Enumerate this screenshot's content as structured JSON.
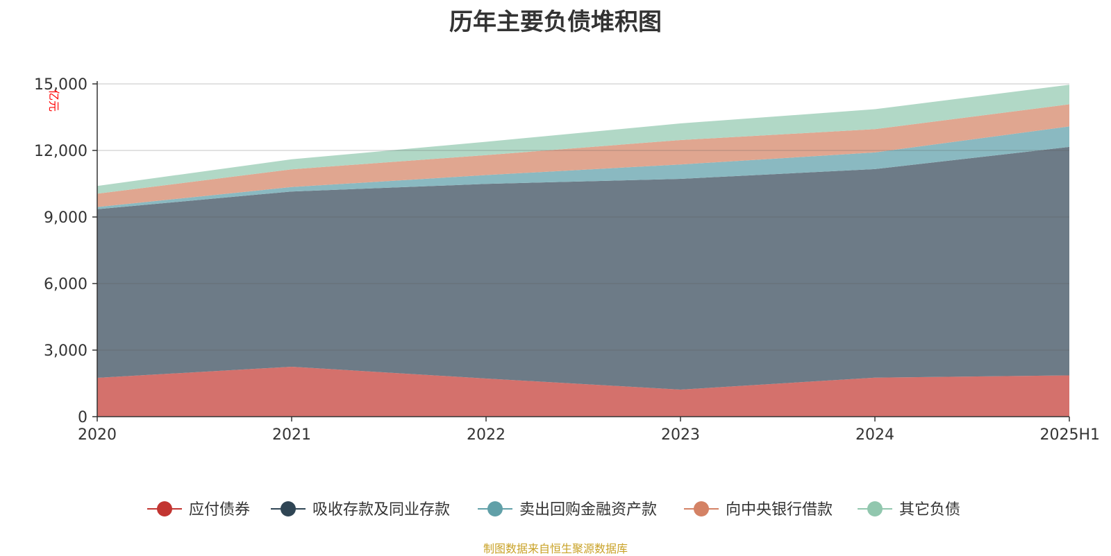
{
  "chart_data": {
    "type": "area",
    "stacked": true,
    "title": "历年主要负债堆积图",
    "unit_label": "亿元",
    "categories": [
      "2020",
      "2021",
      "2022",
      "2023",
      "2024",
      "2025H1"
    ],
    "ylim": [
      0,
      15000
    ],
    "yticks": [
      "0",
      "3,000",
      "6,000",
      "9,000",
      "12,000",
      "15,000"
    ],
    "ytick_values": [
      0,
      3000,
      6000,
      9000,
      12000,
      15000
    ],
    "grid": true,
    "legend_position": "bottom",
    "series": [
      {
        "name": "应付债券",
        "color": "#c23531",
        "fill": "#d4716c",
        "values": [
          1750,
          2250,
          1720,
          1220,
          1760,
          1860
        ]
      },
      {
        "name": "吸收存款及同业存款",
        "color": "#2f4554",
        "fill": "#6d7b87",
        "values": [
          7600,
          7900,
          8770,
          9500,
          9400,
          10300
        ]
      },
      {
        "name": "卖出回购金融资产款",
        "color": "#61a0a8",
        "fill": "#8ab9c1",
        "values": [
          100,
          200,
          400,
          650,
          750,
          920
        ]
      },
      {
        "name": "向中央银行借款",
        "color": "#d48265",
        "fill": "#e0a690",
        "values": [
          600,
          800,
          900,
          1100,
          1050,
          1000
        ]
      },
      {
        "name": "其它负债",
        "color": "#91c7ae",
        "fill": "#b1d8c6",
        "values": [
          350,
          450,
          600,
          750,
          900,
          880
        ]
      }
    ]
  },
  "footer": {
    "source": "制图数据来自恒生聚源数据库"
  }
}
